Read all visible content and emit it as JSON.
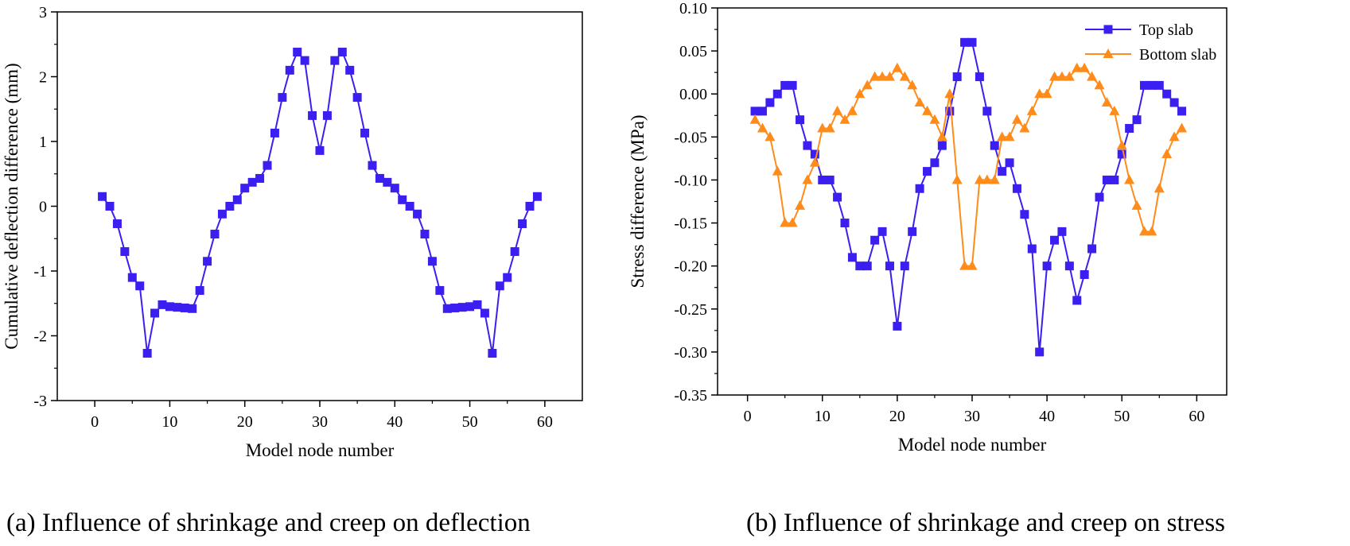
{
  "chart_data": [
    {
      "type": "line",
      "title": "",
      "caption": "(a) Influence of shrinkage and creep on deflection",
      "xlabel": "Model node number",
      "ylabel": "Cumulative deflection difference (mm)",
      "xlim": [
        -5,
        65
      ],
      "ylim": [
        -3,
        3
      ],
      "xticks": [
        0,
        10,
        20,
        30,
        40,
        50,
        60
      ],
      "yticks": [
        -3,
        -2,
        -1,
        0,
        1,
        2,
        3
      ],
      "grid": false,
      "legend": "none",
      "series": [
        {
          "color": "#3b1ff0",
          "marker": "square",
          "x": [
            1,
            2,
            3,
            4,
            5,
            6,
            7,
            8,
            9,
            10,
            11,
            12,
            13,
            14,
            15,
            16,
            17,
            18,
            19,
            20,
            21,
            22,
            23,
            24,
            25,
            26,
            27,
            28,
            29,
            30,
            31,
            32,
            33,
            34,
            35,
            36,
            37,
            38,
            39,
            40,
            41,
            42,
            43,
            44,
            45,
            46,
            47,
            48,
            49,
            50,
            51,
            52,
            53,
            54,
            55,
            56,
            57,
            58,
            59
          ],
          "y": [
            0.15,
            0,
            -0.27,
            -0.7,
            -1.1,
            -1.23,
            -2.27,
            -1.65,
            -1.52,
            -1.55,
            -1.56,
            -1.57,
            -1.58,
            -1.3,
            -0.85,
            -0.43,
            -0.12,
            0,
            0.1,
            0.28,
            0.37,
            0.43,
            0.63,
            1.13,
            1.68,
            2.1,
            2.38,
            2.25,
            1.4,
            0.86,
            1.4,
            2.25,
            2.38,
            2.1,
            1.68,
            1.13,
            0.63,
            0.43,
            0.37,
            0.28,
            0.1,
            0,
            -0.12,
            -0.43,
            -0.85,
            -1.3,
            -1.58,
            -1.57,
            -1.56,
            -1.55,
            -1.52,
            -1.65,
            -2.27,
            -1.23,
            -1.1,
            -0.7,
            -0.27,
            0,
            0.15
          ]
        }
      ]
    },
    {
      "type": "line",
      "title": "",
      "caption": "(b) Influence of shrinkage and creep on stress",
      "xlabel": "Model node number",
      "ylabel": "Stress difference (MPa)",
      "xlim": [
        -4,
        64
      ],
      "ylim": [
        -0.35,
        0.1
      ],
      "xticks": [
        0,
        10,
        20,
        30,
        40,
        50,
        60
      ],
      "yticks": [
        "-0.35",
        "-0.30",
        "-0.25",
        "-0.20",
        "-0.15",
        "-0.10",
        "-0.05",
        "0.00",
        "0.05",
        "0.10"
      ],
      "grid": false,
      "legend": "top-right",
      "series": [
        {
          "name": "Top slab",
          "color": "#3b1ff0",
          "marker": "square",
          "x": [
            1,
            2,
            3,
            4,
            5,
            6,
            7,
            8,
            9,
            10,
            11,
            12,
            13,
            14,
            15,
            16,
            17,
            18,
            19,
            20,
            21,
            22,
            23,
            24,
            25,
            26,
            27,
            28,
            29,
            30,
            31,
            32,
            33,
            34,
            35,
            36,
            37,
            38,
            39,
            40,
            41,
            42,
            43,
            44,
            45,
            46,
            47,
            48,
            49,
            50,
            51,
            52,
            53,
            54,
            55,
            56,
            57,
            58
          ],
          "y": [
            -0.02,
            -0.02,
            -0.01,
            0,
            0.01,
            0.01,
            -0.03,
            -0.06,
            -0.07,
            -0.1,
            -0.1,
            -0.12,
            -0.15,
            -0.19,
            -0.2,
            -0.2,
            -0.17,
            -0.16,
            -0.2,
            -0.27,
            -0.2,
            -0.16,
            -0.11,
            -0.09,
            -0.08,
            -0.06,
            -0.02,
            0.02,
            0.06,
            0.06,
            0.02,
            -0.02,
            -0.06,
            -0.09,
            -0.08,
            -0.11,
            -0.14,
            -0.18,
            -0.3,
            -0.2,
            -0.17,
            -0.16,
            -0.2,
            -0.24,
            -0.21,
            -0.18,
            -0.12,
            -0.1,
            -0.1,
            -0.07,
            -0.04,
            -0.03,
            0.01,
            0.01,
            0.01,
            0,
            -0.01,
            -0.02
          ]
        },
        {
          "name": "Bottom slab",
          "color": "#ff8c1a",
          "marker": "triangle",
          "x": [
            1,
            2,
            3,
            4,
            5,
            6,
            7,
            8,
            9,
            10,
            11,
            12,
            13,
            14,
            15,
            16,
            17,
            18,
            19,
            20,
            21,
            22,
            23,
            24,
            25,
            26,
            27,
            28,
            29,
            30,
            31,
            32,
            33,
            34,
            35,
            36,
            37,
            38,
            39,
            40,
            41,
            42,
            43,
            44,
            45,
            46,
            47,
            48,
            49,
            50,
            51,
            52,
            53,
            54,
            55,
            56,
            57,
            58
          ],
          "y": [
            -0.03,
            -0.04,
            -0.05,
            -0.09,
            -0.15,
            -0.15,
            -0.13,
            -0.1,
            -0.08,
            -0.04,
            -0.04,
            -0.02,
            -0.03,
            -0.02,
            0,
            0.01,
            0.02,
            0.02,
            0.02,
            0.03,
            0.02,
            0.01,
            -0.01,
            -0.02,
            -0.03,
            -0.05,
            0,
            -0.1,
            -0.2,
            -0.2,
            -0.1,
            -0.1,
            -0.1,
            -0.05,
            -0.05,
            -0.03,
            -0.04,
            -0.02,
            0,
            0,
            0.02,
            0.02,
            0.02,
            0.03,
            0.03,
            0.02,
            0.01,
            -0.01,
            -0.02,
            -0.06,
            -0.1,
            -0.13,
            -0.16,
            -0.16,
            -0.11,
            -0.07,
            -0.05,
            -0.04
          ]
        }
      ]
    }
  ]
}
